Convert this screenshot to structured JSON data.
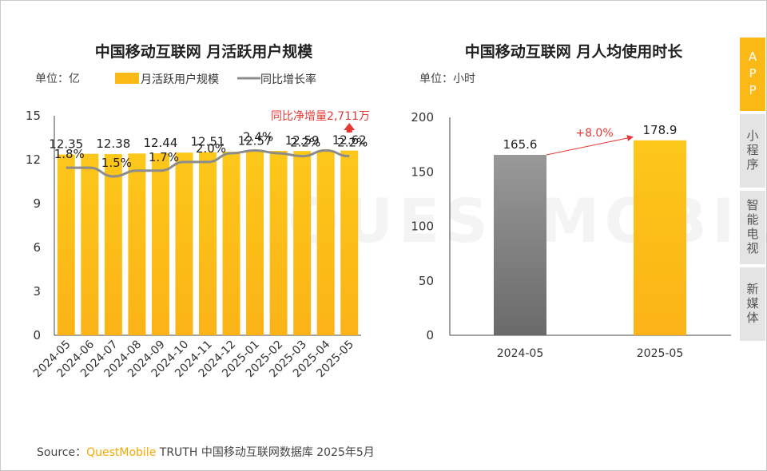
{
  "side_tabs": [
    {
      "label": "APP",
      "active": true
    },
    {
      "label": "小程序",
      "active": false
    },
    {
      "label": "智能电视",
      "active": false
    },
    {
      "label": "新媒体",
      "active": false
    }
  ],
  "source": {
    "prefix": "Source：",
    "brand": "QuestMobile",
    "rest": " TRUTH 中国移动互联网数据库 2025年5月"
  },
  "watermark": "QUESTMOBILE",
  "colors": {
    "bar": "#fbb917",
    "line": "#8c8c8c",
    "gray_bar": "#7a7a7a",
    "annotation": "#e53935"
  },
  "chart_data": [
    {
      "type": "bar",
      "title": "中国移动互联网 月活跃用户规模",
      "unit_label": "单位：亿",
      "legend": [
        {
          "name": "月活跃用户规模",
          "kind": "bar"
        },
        {
          "name": "同比增长率",
          "kind": "line"
        }
      ],
      "categories": [
        "2024-05",
        "2024-06",
        "2024-07",
        "2024-08",
        "2024-09",
        "2024-10",
        "2024-11",
        "2024-12",
        "2025-01",
        "2025-02",
        "2025-03",
        "2025-04",
        "2025-05"
      ],
      "series": [
        {
          "name": "月活跃用户规模",
          "type": "bar",
          "values": [
            12.35,
            12.4,
            12.38,
            12.42,
            12.44,
            12.48,
            12.51,
            12.54,
            12.57,
            12.6,
            12.59,
            12.6,
            12.62
          ]
        },
        {
          "name": "同比增长率",
          "type": "line",
          "axis": "hidden",
          "values": [
            1.8,
            1.8,
            1.5,
            1.7,
            1.7,
            2.0,
            2.0,
            2.3,
            2.4,
            2.3,
            2.2,
            2.4,
            2.2
          ]
        }
      ],
      "bar_labels": [
        {
          "index": 0,
          "text": "12.35"
        },
        {
          "index": 2,
          "text": "12.38"
        },
        {
          "index": 4,
          "text": "12.44"
        },
        {
          "index": 6,
          "text": "12.51"
        },
        {
          "index": 8,
          "text": "12.57"
        },
        {
          "index": 10,
          "text": "12.59"
        },
        {
          "index": 12,
          "text": "12.62"
        }
      ],
      "line_labels": [
        {
          "index": 0,
          "text": "1.8%"
        },
        {
          "index": 2,
          "text": "1.5%"
        },
        {
          "index": 4,
          "text": "1.7%"
        },
        {
          "index": 6,
          "text": "2.0%"
        },
        {
          "index": 8,
          "text": "2.4%"
        },
        {
          "index": 10,
          "text": "2.2%"
        },
        {
          "index": 12,
          "text": "2.2%"
        }
      ],
      "annotation": "同比净增量2,711万",
      "ylim": [
        0,
        15
      ],
      "yticks": [
        0,
        3,
        6,
        9,
        12,
        15
      ],
      "line_ylim": [
        -4.0,
        3.6
      ],
      "grid": false
    },
    {
      "type": "bar",
      "title": "中国移动互联网 月人均使用时长",
      "unit_label": "单位：小时",
      "categories": [
        "2024-05",
        "2025-05"
      ],
      "values": [
        165.6,
        178.9
      ],
      "value_labels": [
        "165.6",
        "178.9"
      ],
      "growth_label": "+8.0%",
      "ylim": [
        0,
        200
      ],
      "yticks": [
        0,
        50,
        100,
        150,
        200
      ],
      "grid": false
    }
  ]
}
